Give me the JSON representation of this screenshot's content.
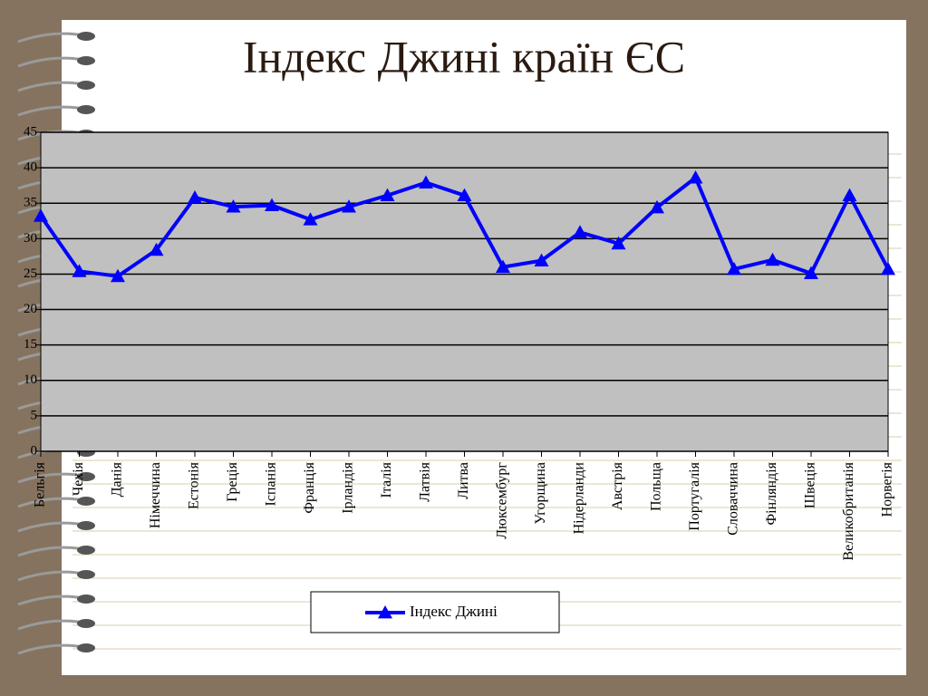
{
  "chart_data": {
    "type": "line",
    "title": "Індекс Джині країн ЄС",
    "categories": [
      "Бельгія",
      "Чехія",
      "Данія",
      "Німеччина",
      "Естонія",
      "Греція",
      "Іспанія",
      "Франція",
      "Ірландія",
      "Італія",
      "Латвія",
      "Литва",
      "Люксембург",
      "Угорщина",
      "Нідерланди",
      "Австрія",
      "Польща",
      "Португалія",
      "Словаччина",
      "Фінляндія",
      "Швеція",
      "Великобританія",
      "Норвегія"
    ],
    "series": [
      {
        "name": "Індекс Джині",
        "color": "#0000ff",
        "values": [
          33.2,
          25.4,
          24.7,
          28.4,
          35.8,
          34.5,
          34.7,
          32.7,
          34.5,
          36.1,
          37.9,
          36.1,
          26,
          26.9,
          30.9,
          29.3,
          34.4,
          38.6,
          25.7,
          27,
          25.1,
          36.1,
          25.7
        ]
      }
    ],
    "ylim": [
      0,
      45
    ],
    "yticks": [
      0,
      5,
      10,
      15,
      20,
      25,
      30,
      35,
      40,
      45
    ],
    "grid": true,
    "legend": "bottom"
  }
}
